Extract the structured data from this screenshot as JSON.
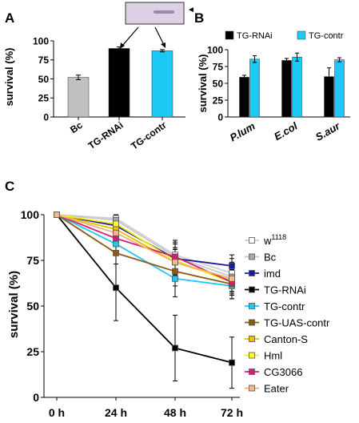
{
  "panels": {
    "a": "A",
    "b": "B",
    "c": "C"
  },
  "chart_data": [
    {
      "type": "bar",
      "panel": "A",
      "ylabel": "survival (%)",
      "ylim": [
        0,
        100
      ],
      "yticks": [
        0,
        25,
        50,
        75,
        100
      ],
      "categories": [
        "Bc",
        "TG-RNAi",
        "TG-contr"
      ],
      "values": [
        52,
        90,
        87
      ],
      "errors": [
        3,
        2,
        1.5
      ],
      "colors": [
        "#c0c0c0",
        "#000000",
        "#1cc8f4"
      ],
      "inset": {
        "type": "blot",
        "marker": "◄"
      }
    },
    {
      "type": "bar",
      "panel": "B",
      "ylabel": "survival (%)",
      "ylim": [
        0,
        100
      ],
      "yticks": [
        0,
        25,
        50,
        75,
        100
      ],
      "categories": [
        "P.lum",
        "E.col",
        "S.aur"
      ],
      "series": [
        {
          "name": "TG-RNAi",
          "color": "#000000",
          "values": [
            59,
            84,
            60
          ],
          "errors": [
            3,
            3,
            13
          ]
        },
        {
          "name": "TG-contr",
          "color": "#1cc8f4",
          "values": [
            86,
            89,
            85
          ],
          "errors": [
            5,
            6,
            3
          ]
        }
      ],
      "legend": "top"
    },
    {
      "type": "line",
      "panel": "C",
      "ylabel": "survival (%)",
      "ylim": [
        0,
        100
      ],
      "yticks": [
        0,
        25,
        50,
        75,
        100
      ],
      "categories": [
        "0 h",
        "24 h",
        "48 h",
        "72 h"
      ],
      "legend": "right",
      "series": [
        {
          "name": "w",
          "sup": "1118",
          "color": "#d0d0d0",
          "marker": "#ffffff",
          "values": [
            100,
            98,
            78,
            68
          ],
          "errors": [
            0,
            2,
            8,
            8
          ]
        },
        {
          "name": "Bc",
          "color": "#c8c8c8",
          "marker": "#a8a8a8",
          "values": [
            100,
            97,
            77,
            66
          ],
          "errors": [
            0,
            2,
            8,
            8
          ]
        },
        {
          "name": "imd",
          "color": "#1a1aa0",
          "marker": "#1a1aa0",
          "values": [
            100,
            94,
            76,
            72
          ],
          "errors": [
            0,
            2,
            6,
            6
          ]
        },
        {
          "name": "TG-RNAi",
          "color": "#000000",
          "marker": "#000000",
          "values": [
            100,
            60,
            27,
            19
          ],
          "errors": [
            0,
            18,
            18,
            14
          ]
        },
        {
          "name": "TG-contr",
          "color": "#1cc8f4",
          "marker": "#1cc8f4",
          "values": [
            100,
            84,
            65,
            61
          ],
          "errors": [
            0,
            5,
            10,
            7
          ]
        },
        {
          "name": "TG-UAS-contr",
          "color": "#8b5a14",
          "marker": "#8b5a14",
          "values": [
            100,
            79,
            69,
            62
          ],
          "errors": [
            0,
            6,
            8,
            8
          ]
        },
        {
          "name": "Canton-S",
          "color": "#e8c000",
          "marker": "#f0c000",
          "values": [
            100,
            92,
            74,
            64
          ],
          "errors": [
            0,
            3,
            7,
            7
          ]
        },
        {
          "name": "Hml",
          "color": "#f4f000",
          "marker": "#ffff20",
          "values": [
            100,
            95,
            75,
            63
          ],
          "errors": [
            0,
            3,
            7,
            7
          ]
        },
        {
          "name": "CG3066",
          "color": "#d21e74",
          "marker": "#d21e74",
          "values": [
            100,
            87,
            77,
            63
          ],
          "errors": [
            0,
            4,
            7,
            7
          ]
        },
        {
          "name": "Eater",
          "color": "#f0b07c",
          "marker": "#f4b88a",
          "values": [
            100,
            90,
            74,
            65
          ],
          "errors": [
            0,
            3,
            7,
            7
          ]
        }
      ]
    }
  ]
}
